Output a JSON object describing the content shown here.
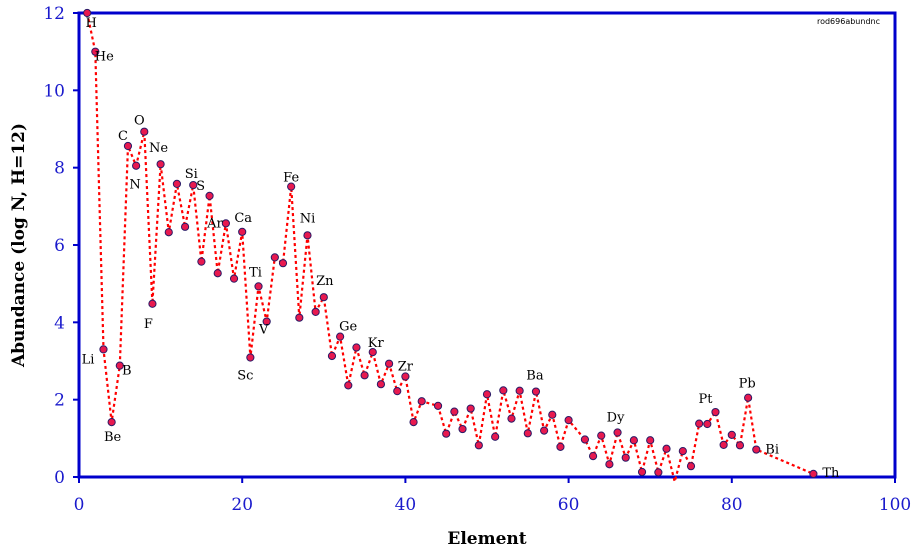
{
  "chart_data": {
    "type": "scatter",
    "title": "",
    "xlabel": "Element",
    "ylabel": "Abundance (log N, H=12)",
    "xlim": [
      0,
      100
    ],
    "ylim": [
      0,
      12
    ],
    "xticks": [
      "0",
      "20",
      "40",
      "60",
      "80",
      "100"
    ],
    "yticks": [
      "0",
      "2",
      "4",
      "6",
      "8",
      "10",
      "12"
    ],
    "watermark": "rod696abundnc",
    "grid": false,
    "legend": "none",
    "colors": {
      "marker_fill": "#e8194f",
      "marker_edge": "#2a1a66",
      "line": "#ff0000",
      "axis": "#0000cc",
      "tick_text": "#1a1acc"
    },
    "series": [
      {
        "x": [
          1,
          2,
          3,
          4,
          5,
          6,
          7,
          8,
          9,
          10,
          11,
          12,
          13,
          14,
          15,
          16,
          17,
          18,
          19,
          20,
          21,
          22,
          23,
          24,
          25,
          26,
          27,
          28,
          29,
          30,
          31,
          32,
          33,
          34,
          35,
          36,
          37,
          38,
          39,
          40,
          41,
          42,
          44,
          45,
          46,
          47,
          48,
          49,
          50,
          51,
          52,
          53,
          54,
          55,
          56,
          57,
          58,
          59,
          60,
          62,
          63,
          64,
          65,
          66,
          67,
          68,
          69,
          70,
          71,
          72,
          73,
          74,
          75,
          76,
          77,
          78,
          79,
          80,
          81,
          82,
          83,
          90
        ],
        "y": [
          12.0,
          11.0,
          3.3,
          1.42,
          2.88,
          8.56,
          8.05,
          8.93,
          4.48,
          8.09,
          6.33,
          7.58,
          6.47,
          7.55,
          5.57,
          7.27,
          5.27,
          6.56,
          5.13,
          6.34,
          3.09,
          4.93,
          4.02,
          5.68,
          5.53,
          7.51,
          4.12,
          6.25,
          4.27,
          4.65,
          3.13,
          3.63,
          2.37,
          3.35,
          2.63,
          3.23,
          2.4,
          2.93,
          2.22,
          2.6,
          1.42,
          1.96,
          1.84,
          1.12,
          1.69,
          1.24,
          1.77,
          0.82,
          2.14,
          1.04,
          2.24,
          1.51,
          2.23,
          1.13,
          2.21,
          1.2,
          1.61,
          0.78,
          1.47,
          0.97,
          0.54,
          1.07,
          0.33,
          1.15,
          0.5,
          0.95,
          0.13,
          0.95,
          0.12,
          0.73,
          -0.12,
          0.67,
          0.28,
          1.38,
          1.37,
          1.68,
          0.83,
          1.09,
          0.82,
          2.05,
          0.71,
          0.08
        ]
      }
    ],
    "annotations": [
      {
        "text": "H",
        "x": 1,
        "y": 12.0
      },
      {
        "text": "He",
        "x": 2,
        "y": 11.0
      },
      {
        "text": "Li",
        "x": 3,
        "y": 3.3
      },
      {
        "text": "Be",
        "x": 4,
        "y": 1.42
      },
      {
        "text": "B",
        "x": 5,
        "y": 2.88
      },
      {
        "text": "C",
        "x": 6,
        "y": 8.56
      },
      {
        "text": "N",
        "x": 7,
        "y": 8.05
      },
      {
        "text": "O",
        "x": 8,
        "y": 8.93
      },
      {
        "text": "F",
        "x": 9,
        "y": 4.48
      },
      {
        "text": "Ne",
        "x": 10,
        "y": 8.09
      },
      {
        "text": "Si",
        "x": 14,
        "y": 7.55
      },
      {
        "text": "S",
        "x": 16,
        "y": 7.27
      },
      {
        "text": "Ar",
        "x": 18,
        "y": 6.56
      },
      {
        "text": "Ca",
        "x": 20,
        "y": 6.34
      },
      {
        "text": "Sc",
        "x": 21,
        "y": 3.09
      },
      {
        "text": "Ti",
        "x": 22,
        "y": 4.93
      },
      {
        "text": "V",
        "x": 23,
        "y": 4.02
      },
      {
        "text": "Fe",
        "x": 26,
        "y": 7.51
      },
      {
        "text": "Ni",
        "x": 28,
        "y": 6.25
      },
      {
        "text": "Zn",
        "x": 30,
        "y": 4.65
      },
      {
        "text": "Ge",
        "x": 32,
        "y": 3.63
      },
      {
        "text": "Kr",
        "x": 36,
        "y": 3.23
      },
      {
        "text": "Zr",
        "x": 40,
        "y": 2.6
      },
      {
        "text": "Ba",
        "x": 56,
        "y": 2.21
      },
      {
        "text": "Dy",
        "x": 66,
        "y": 1.15
      },
      {
        "text": "Pt",
        "x": 78,
        "y": 1.68
      },
      {
        "text": "Pb",
        "x": 82,
        "y": 2.05
      },
      {
        "text": "Bi",
        "x": 83,
        "y": 0.71
      },
      {
        "text": "Th",
        "x": 90,
        "y": 0.08
      }
    ]
  }
}
